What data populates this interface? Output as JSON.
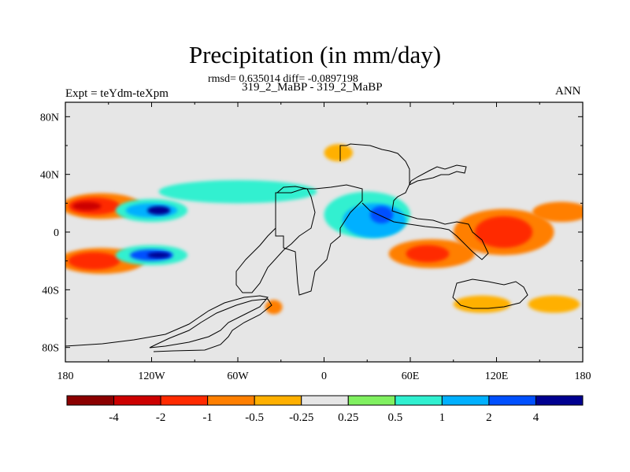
{
  "chart_data": {
    "type": "heatmap",
    "title": "Precipitation (in mm/day)",
    "stats_line": "rmsd= 0.635014 diff= -0.0897198",
    "subtitle": "319_2_MaBP - 319_2_MaBP",
    "left_label": "Expt = teYdm-teXpm",
    "right_label": "ANN",
    "xlim": [
      -180,
      180
    ],
    "ylim": [
      -90,
      90
    ],
    "x_ticks": [
      {
        "value": -180,
        "label": "180"
      },
      {
        "value": -120,
        "label": "120W"
      },
      {
        "value": -60,
        "label": "60W"
      },
      {
        "value": 0,
        "label": "0"
      },
      {
        "value": 60,
        "label": "60E"
      },
      {
        "value": 120,
        "label": "120E"
      },
      {
        "value": 180,
        "label": "180"
      }
    ],
    "y_ticks": [
      {
        "value": 80,
        "label": "80N"
      },
      {
        "value": 40,
        "label": "40N"
      },
      {
        "value": 0,
        "label": "0"
      },
      {
        "value": -40,
        "label": "40S"
      },
      {
        "value": -80,
        "label": "80S"
      }
    ],
    "colorbar": {
      "colors": [
        "#8b0000",
        "#cc0000",
        "#ff2a00",
        "#ff7f00",
        "#ffb000",
        "#e6e6e6",
        "#80f060",
        "#30f0d0",
        "#00b0ff",
        "#0050ff",
        "#000090"
      ],
      "labels": [
        "-4",
        "-2",
        "-1",
        "-0.5",
        "-0.25",
        "0.25",
        "0.5",
        "1",
        "2",
        "4"
      ]
    },
    "background_color": "#e6e6e6",
    "anomaly_regions": [
      {
        "lon": -155,
        "lat": 18,
        "rlon": 28,
        "rlat": 9,
        "level": -1
      },
      {
        "lon": -160,
        "lat": 18,
        "rlon": 18,
        "rlat": 6,
        "level": -2
      },
      {
        "lon": -165,
        "lat": 18,
        "rlon": 10,
        "rlat": 3,
        "level": -4
      },
      {
        "lon": -155,
        "lat": -20,
        "rlon": 30,
        "rlat": 9,
        "level": -1
      },
      {
        "lon": -160,
        "lat": -20,
        "rlon": 18,
        "rlat": 6,
        "level": -2
      },
      {
        "lon": -120,
        "lat": 15,
        "rlon": 25,
        "rlat": 8,
        "level": 0.5
      },
      {
        "lon": -120,
        "lat": 15,
        "rlon": 18,
        "rlat": 5,
        "level": 1
      },
      {
        "lon": -115,
        "lat": 15,
        "rlon": 8,
        "rlat": 3,
        "level": 4
      },
      {
        "lon": -120,
        "lat": -16,
        "rlon": 25,
        "rlat": 7,
        "level": 0.5
      },
      {
        "lon": -120,
        "lat": -16,
        "rlon": 15,
        "rlat": 4,
        "level": 2
      },
      {
        "lon": -115,
        "lat": -16,
        "rlon": 8,
        "rlat": 2,
        "level": 4
      },
      {
        "lon": -60,
        "lat": 28,
        "rlon": 55,
        "rlat": 8,
        "level": 0.5
      },
      {
        "lon": 30,
        "lat": 12,
        "rlon": 30,
        "rlat": 16,
        "level": 0.5
      },
      {
        "lon": 35,
        "lat": 8,
        "rlon": 22,
        "rlat": 12,
        "level": 1
      },
      {
        "lon": 40,
        "lat": 12,
        "rlon": 8,
        "rlat": 6,
        "level": 2
      },
      {
        "lon": 75,
        "lat": -15,
        "rlon": 30,
        "rlat": 10,
        "level": -1
      },
      {
        "lon": 72,
        "lat": -15,
        "rlon": 15,
        "rlat": 6,
        "level": -2
      },
      {
        "lon": 125,
        "lat": 0,
        "rlon": 35,
        "rlat": 16,
        "level": -1
      },
      {
        "lon": 125,
        "lat": 0,
        "rlon": 20,
        "rlat": 11,
        "level": -2
      },
      {
        "lon": 165,
        "lat": 14,
        "rlon": 20,
        "rlat": 7,
        "level": -1
      },
      {
        "lon": 10,
        "lat": 55,
        "rlon": 10,
        "rlat": 6,
        "level": -0.5
      },
      {
        "lon": 110,
        "lat": -50,
        "rlon": 20,
        "rlat": 6,
        "level": -0.5
      },
      {
        "lon": 160,
        "lat": -50,
        "rlon": 18,
        "rlat": 6,
        "level": -0.5
      },
      {
        "lon": -35,
        "lat": -52,
        "rlon": 6,
        "rlat": 5,
        "level": -1
      }
    ]
  }
}
